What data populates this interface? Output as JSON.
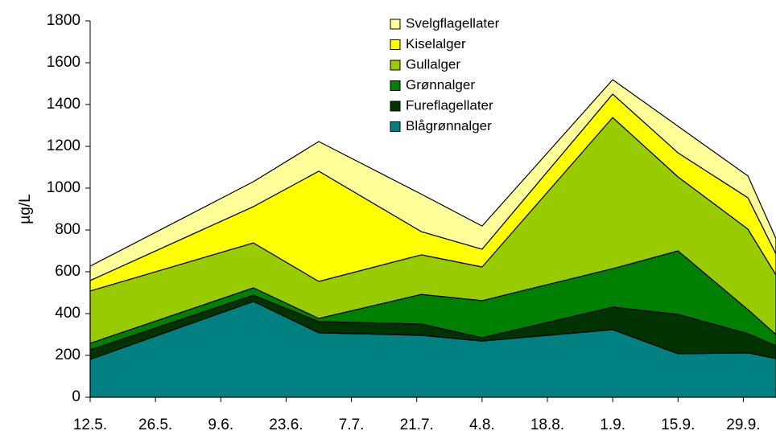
{
  "chart_data": {
    "type": "stacked-area",
    "ylabel": "µg/L",
    "x": [
      "12.5.",
      "16.6.",
      "30.6.",
      "22.7.",
      "4.8.",
      "1.9.",
      "15.9.",
      "30.9.",
      "6.10."
    ],
    "xlim": [
      "12.5.",
      "6.10."
    ],
    "xticks": [
      "12.5.",
      "26.5.",
      "9.6.",
      "23.6.",
      "7.7.",
      "21.7.",
      "4.8.",
      "18.8.",
      "1.9.",
      "15.9.",
      "29.9."
    ],
    "ylim": [
      0,
      1800
    ],
    "yticks": [
      0,
      200,
      400,
      600,
      800,
      1000,
      1200,
      1400,
      1600,
      1800
    ],
    "legend": "top",
    "series": [
      {
        "name": "Blågrønnalger",
        "color": "#008080",
        "values": [
          181,
          458,
          308,
          296,
          269,
          323,
          208,
          212,
          185
        ]
      },
      {
        "name": "Fureflagellater",
        "color": "#003300",
        "values": [
          46,
          30,
          54,
          54,
          16,
          108,
          188,
          92,
          61
        ]
      },
      {
        "name": "Grønnalger",
        "color": "#008000",
        "values": [
          31,
          35,
          15,
          142,
          177,
          184,
          304,
          115,
          54
        ]
      },
      {
        "name": "Gullalger",
        "color": "#99cc00",
        "values": [
          250,
          215,
          177,
          189,
          161,
          723,
          354,
          385,
          285
        ]
      },
      {
        "name": "Kiselalger",
        "color": "#ffff00",
        "values": [
          50,
          174,
          527,
          111,
          85,
          112,
          115,
          150,
          100
        ]
      },
      {
        "name": "Svelgflagellater",
        "color": "#ffff99",
        "values": [
          69,
          119,
          142,
          179,
          111,
          69,
          127,
          104,
          73
        ]
      }
    ]
  }
}
